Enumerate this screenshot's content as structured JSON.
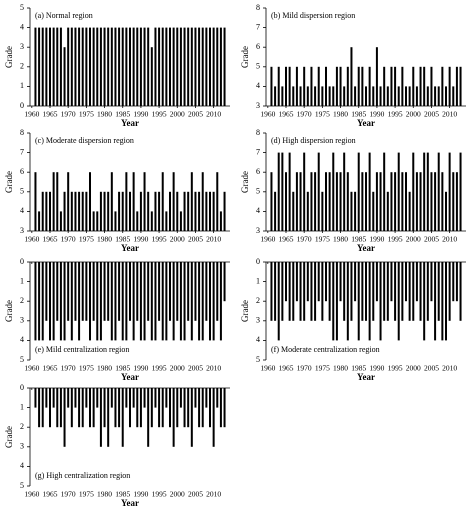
{
  "chart_data": [
    {
      "type": "bar",
      "title": "(a) Normal region",
      "title_loc": "upper left",
      "ylabel": "Grade",
      "xlabel": "Year",
      "color": "#000000",
      "ylim": [
        0,
        5
      ],
      "yticks": [
        0,
        1,
        2,
        3,
        4,
        5
      ],
      "xlim": [
        1959.5,
        2014.5
      ],
      "xticks": [
        1960,
        1965,
        1970,
        1975,
        1980,
        1985,
        1990,
        1995,
        2000,
        2005,
        2010
      ],
      "x": [
        1961,
        1962,
        1963,
        1964,
        1965,
        1966,
        1967,
        1968,
        1969,
        1970,
        1971,
        1972,
        1973,
        1974,
        1975,
        1976,
        1977,
        1978,
        1979,
        1980,
        1981,
        1982,
        1983,
        1984,
        1985,
        1986,
        1987,
        1988,
        1989,
        1990,
        1991,
        1992,
        1993,
        1994,
        1995,
        1996,
        1997,
        1998,
        1999,
        2000,
        2001,
        2002,
        2003,
        2004,
        2005,
        2006,
        2007,
        2008,
        2009,
        2010,
        2011,
        2012,
        2013
      ],
      "values": [
        4,
        4,
        4,
        4,
        4,
        4,
        4,
        4,
        3,
        4,
        4,
        4,
        4,
        4,
        4,
        4,
        4,
        4,
        4,
        4,
        4,
        4,
        4,
        4,
        4,
        4,
        4,
        4,
        4,
        4,
        4,
        4,
        3,
        4,
        4,
        4,
        4,
        4,
        4,
        4,
        4,
        4,
        4,
        4,
        4,
        4,
        4,
        4,
        4,
        4,
        4,
        4,
        4
      ]
    },
    {
      "type": "bar",
      "title": "(b) Mild dispersion region",
      "title_loc": "upper left",
      "ylabel": "Grade",
      "xlabel": "Year",
      "color": "#000000",
      "ylim": [
        3,
        8
      ],
      "yticks": [
        3,
        4,
        5,
        6,
        7,
        8
      ],
      "xlim": [
        1959.5,
        2014.5
      ],
      "xticks": [
        1960,
        1965,
        1970,
        1975,
        1980,
        1985,
        1990,
        1995,
        2000,
        2005,
        2010
      ],
      "x": [
        1961,
        1962,
        1963,
        1964,
        1965,
        1966,
        1967,
        1968,
        1969,
        1970,
        1971,
        1972,
        1973,
        1974,
        1975,
        1976,
        1977,
        1978,
        1979,
        1980,
        1981,
        1982,
        1983,
        1984,
        1985,
        1986,
        1987,
        1988,
        1989,
        1990,
        1991,
        1992,
        1993,
        1994,
        1995,
        1996,
        1997,
        1998,
        1999,
        2000,
        2001,
        2002,
        2003,
        2004,
        2005,
        2006,
        2007,
        2008,
        2009,
        2010,
        2011,
        2012,
        2013
      ],
      "values": [
        5,
        4,
        5,
        4,
        5,
        5,
        4,
        5,
        4,
        5,
        4,
        5,
        4,
        5,
        4,
        5,
        4,
        4,
        5,
        5,
        4,
        5,
        6,
        4,
        5,
        5,
        4,
        5,
        4,
        6,
        4,
        5,
        4,
        5,
        5,
        4,
        5,
        4,
        4,
        5,
        4,
        5,
        5,
        4,
        5,
        4,
        4,
        5,
        4,
        5,
        4,
        5,
        5
      ]
    },
    {
      "type": "bar",
      "title": "(c) Moderate dispersion region",
      "title_loc": "upper left",
      "ylabel": "Grade",
      "xlabel": "Year",
      "color": "#000000",
      "ylim": [
        3,
        8
      ],
      "yticks": [
        3,
        4,
        5,
        6,
        7,
        8
      ],
      "xlim": [
        1959.5,
        2014.5
      ],
      "xticks": [
        1960,
        1965,
        1970,
        1975,
        1980,
        1985,
        1990,
        1995,
        2000,
        2005,
        2010
      ],
      "x": [
        1961,
        1962,
        1963,
        1964,
        1965,
        1966,
        1967,
        1968,
        1969,
        1970,
        1971,
        1972,
        1973,
        1974,
        1975,
        1976,
        1977,
        1978,
        1979,
        1980,
        1981,
        1982,
        1983,
        1984,
        1985,
        1986,
        1987,
        1988,
        1989,
        1990,
        1991,
        1992,
        1993,
        1994,
        1995,
        1996,
        1997,
        1998,
        1999,
        2000,
        2001,
        2002,
        2003,
        2004,
        2005,
        2006,
        2007,
        2008,
        2009,
        2010,
        2011,
        2012,
        2013
      ],
      "values": [
        6,
        4,
        5,
        5,
        5,
        6,
        6,
        4,
        5,
        6,
        5,
        5,
        5,
        5,
        5,
        6,
        4,
        4,
        5,
        5,
        5,
        6,
        4,
        5,
        5,
        6,
        5,
        6,
        4,
        5,
        6,
        5,
        4,
        5,
        5,
        6,
        4,
        5,
        6,
        5,
        4,
        5,
        5,
        6,
        5,
        5,
        6,
        5,
        5,
        5,
        6,
        4,
        5
      ]
    },
    {
      "type": "bar",
      "title": "(d) High dispersion region",
      "title_loc": "upper left",
      "ylabel": "Grade",
      "xlabel": "Year",
      "color": "#000000",
      "ylim": [
        3,
        8
      ],
      "yticks": [
        3,
        4,
        5,
        6,
        7,
        8
      ],
      "xlim": [
        1959.5,
        2014.5
      ],
      "xticks": [
        1960,
        1965,
        1970,
        1975,
        1980,
        1985,
        1990,
        1995,
        2000,
        2005,
        2010
      ],
      "x": [
        1961,
        1962,
        1963,
        1964,
        1965,
        1966,
        1967,
        1968,
        1969,
        1970,
        1971,
        1972,
        1973,
        1974,
        1975,
        1976,
        1977,
        1978,
        1979,
        1980,
        1981,
        1982,
        1983,
        1984,
        1985,
        1986,
        1987,
        1988,
        1989,
        1990,
        1991,
        1992,
        1993,
        1994,
        1995,
        1996,
        1997,
        1998,
        1999,
        2000,
        2001,
        2002,
        2003,
        2004,
        2005,
        2006,
        2007,
        2008,
        2009,
        2010,
        2011,
        2012,
        2013
      ],
      "values": [
        6,
        5,
        7,
        7,
        6,
        7,
        5,
        6,
        6,
        7,
        5,
        6,
        6,
        7,
        5,
        6,
        6,
        7,
        6,
        6,
        7,
        6,
        5,
        5,
        7,
        6,
        6,
        7,
        5,
        6,
        6,
        7,
        5,
        6,
        6,
        7,
        6,
        6,
        5,
        7,
        6,
        6,
        7,
        7,
        6,
        6,
        7,
        6,
        5,
        7,
        6,
        6,
        7
      ]
    },
    {
      "type": "bar",
      "title": "(e) Mild centralization region",
      "title_loc": "lower left",
      "ylabel": "Grade",
      "xlabel": "Year",
      "color": "#000000",
      "ylim": [
        5,
        0
      ],
      "yticks": [
        0,
        1,
        2,
        3,
        4,
        5
      ],
      "xlim": [
        1959.5,
        2014.5
      ],
      "xticks": [
        1960,
        1965,
        1970,
        1975,
        1980,
        1985,
        1990,
        1995,
        2000,
        2005,
        2010
      ],
      "x": [
        1961,
        1962,
        1963,
        1964,
        1965,
        1966,
        1967,
        1968,
        1969,
        1970,
        1971,
        1972,
        1973,
        1974,
        1975,
        1976,
        1977,
        1978,
        1979,
        1980,
        1981,
        1982,
        1983,
        1984,
        1985,
        1986,
        1987,
        1988,
        1989,
        1990,
        1991,
        1992,
        1993,
        1994,
        1995,
        1996,
        1997,
        1998,
        1999,
        2000,
        2001,
        2002,
        2003,
        2004,
        2005,
        2006,
        2007,
        2008,
        2009,
        2010,
        2011,
        2012,
        2013
      ],
      "values": [
        4,
        4,
        4,
        3,
        4,
        4,
        3,
        4,
        4,
        3,
        4,
        3,
        4,
        3,
        3,
        4,
        3,
        4,
        4,
        3,
        3,
        4,
        4,
        3,
        4,
        4,
        3,
        4,
        3,
        4,
        4,
        3,
        4,
        4,
        3,
        4,
        4,
        3,
        4,
        3,
        4,
        4,
        3,
        4,
        3,
        4,
        4,
        3,
        4,
        4,
        3,
        4,
        2
      ]
    },
    {
      "type": "bar",
      "title": "(f) Moderate centralization region",
      "title_loc": "lower left",
      "ylabel": "Grade",
      "xlabel": "Year",
      "color": "#000000",
      "ylim": [
        5,
        0
      ],
      "yticks": [
        0,
        1,
        2,
        3,
        4,
        5
      ],
      "xlim": [
        1959.5,
        2014.5
      ],
      "xticks": [
        1960,
        1965,
        1970,
        1975,
        1980,
        1985,
        1990,
        1995,
        2000,
        2005,
        2010
      ],
      "x": [
        1961,
        1962,
        1963,
        1964,
        1965,
        1966,
        1967,
        1968,
        1969,
        1970,
        1971,
        1972,
        1973,
        1974,
        1975,
        1976,
        1977,
        1978,
        1979,
        1980,
        1981,
        1982,
        1983,
        1984,
        1985,
        1986,
        1987,
        1988,
        1989,
        1990,
        1991,
        1992,
        1993,
        1994,
        1995,
        1996,
        1997,
        1998,
        1999,
        2000,
        2001,
        2002,
        2003,
        2004,
        2005,
        2006,
        2007,
        2008,
        2009,
        2010,
        2011,
        2012,
        2013
      ],
      "values": [
        3,
        3,
        4,
        3,
        2,
        3,
        3,
        2,
        3,
        3,
        2,
        3,
        3,
        2,
        3,
        2,
        3,
        4,
        4,
        2,
        3,
        4,
        3,
        2,
        4,
        3,
        3,
        4,
        3,
        2,
        4,
        3,
        3,
        2,
        3,
        4,
        3,
        2,
        3,
        3,
        2,
        3,
        4,
        3,
        2,
        4,
        3,
        4,
        4,
        3,
        2,
        2,
        3
      ]
    },
    {
      "type": "bar",
      "title": "(g) High centralization region",
      "title_loc": "lower left",
      "ylabel": "Grade",
      "xlabel": "Year",
      "color": "#000000",
      "ylim": [
        5,
        0
      ],
      "yticks": [
        0,
        1,
        2,
        3,
        4,
        5
      ],
      "xlim": [
        1959.5,
        2014.5
      ],
      "xticks": [
        1960,
        1965,
        1970,
        1975,
        1980,
        1985,
        1990,
        1995,
        2000,
        2005,
        2010
      ],
      "x": [
        1961,
        1962,
        1963,
        1964,
        1965,
        1966,
        1967,
        1968,
        1969,
        1970,
        1971,
        1972,
        1973,
        1974,
        1975,
        1976,
        1977,
        1978,
        1979,
        1980,
        1981,
        1982,
        1983,
        1984,
        1985,
        1986,
        1987,
        1988,
        1989,
        1990,
        1991,
        1992,
        1993,
        1994,
        1995,
        1996,
        1997,
        1998,
        1999,
        2000,
        2001,
        2002,
        2003,
        2004,
        2005,
        2006,
        2007,
        2008,
        2009,
        2010,
        2011,
        2012,
        2013
      ],
      "values": [
        1,
        2,
        2,
        1,
        2,
        1,
        2,
        2,
        3,
        1,
        2,
        1,
        2,
        2,
        1,
        2,
        2,
        1,
        3,
        2,
        3,
        1,
        2,
        2,
        3,
        1,
        2,
        1,
        2,
        2,
        1,
        3,
        2,
        1,
        2,
        2,
        1,
        2,
        3,
        2,
        1,
        2,
        2,
        3,
        1,
        2,
        2,
        1,
        2,
        3,
        1,
        2,
        2
      ]
    }
  ]
}
